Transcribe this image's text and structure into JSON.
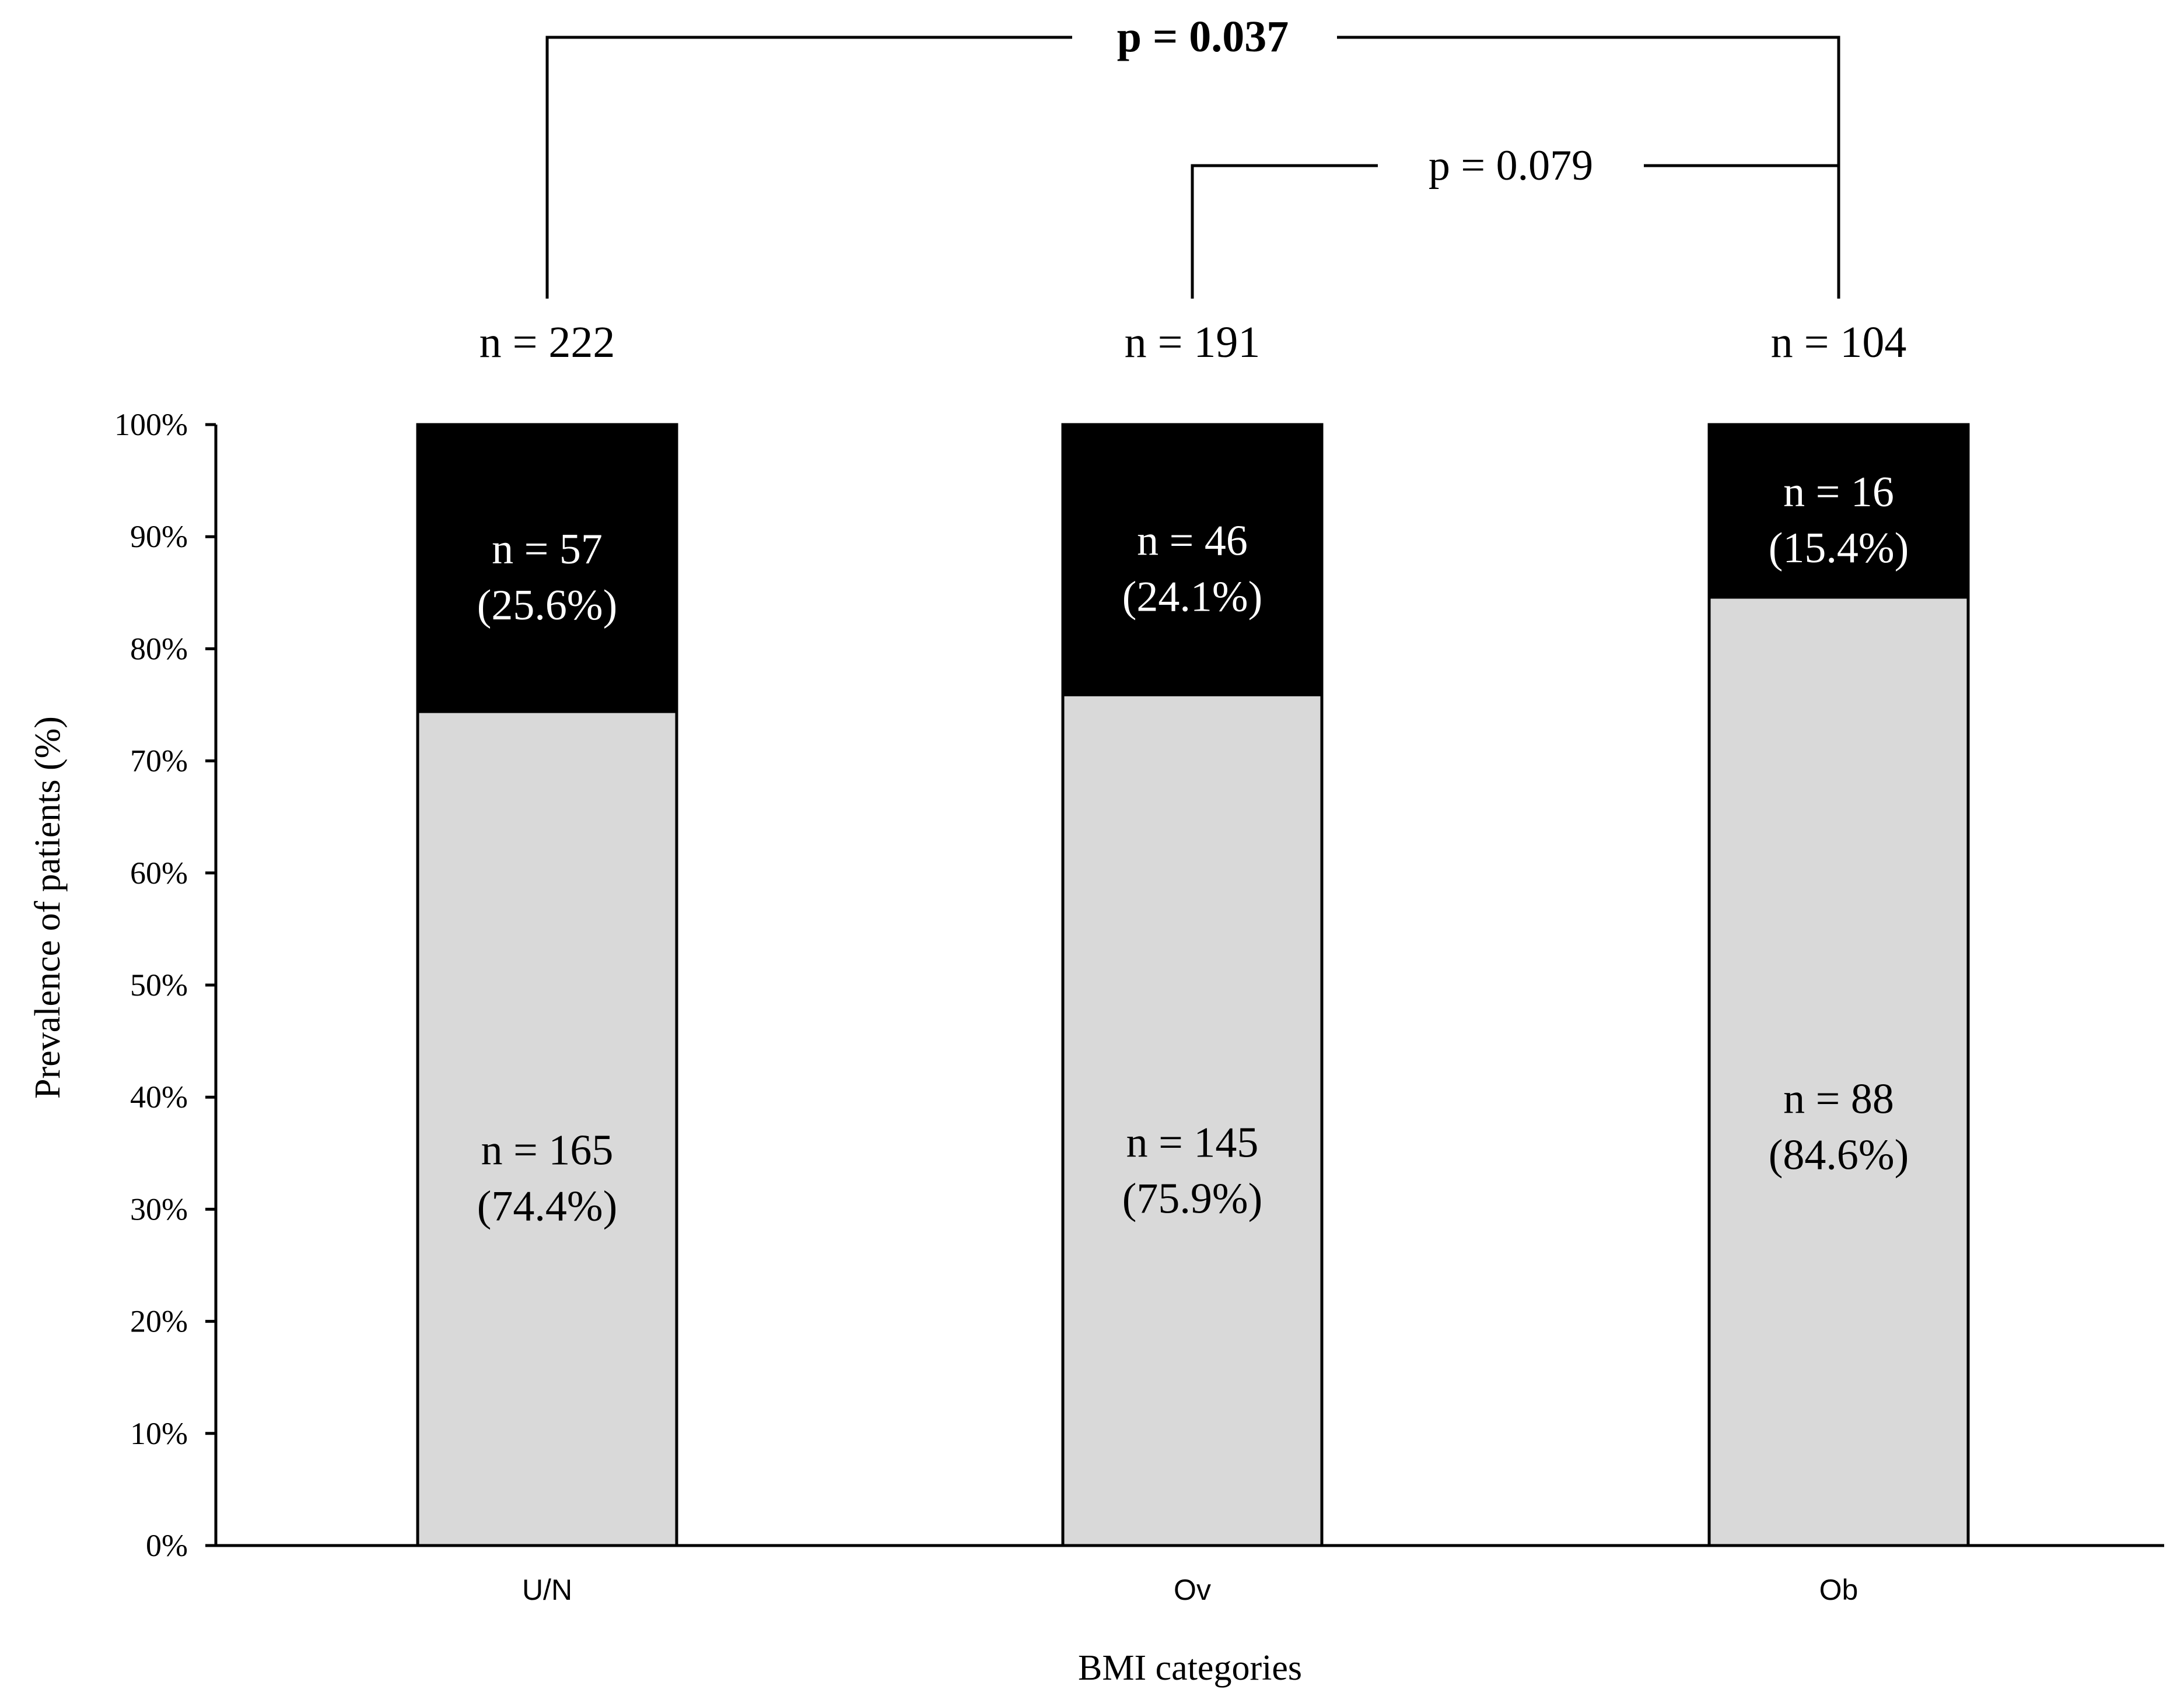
{
  "chart_data": {
    "type": "bar",
    "stacked": true,
    "title": "",
    "xlabel": "BMI categories",
    "ylabel": "Prevalence of patients (%)",
    "ylim": [
      0,
      100
    ],
    "y_ticks": [
      "0%",
      "10%",
      "20%",
      "30%",
      "40%",
      "50%",
      "60%",
      "70%",
      "80%",
      "90%",
      "100%"
    ],
    "categories": [
      "U/N",
      "Ov",
      "Ob"
    ],
    "totals": [
      "n = 222",
      "n = 191",
      "n = 104"
    ],
    "series": [
      {
        "values": [
          74.4,
          75.9,
          84.6
        ],
        "counts": [
          "n = 165",
          "n = 145",
          "n = 88"
        ],
        "percent_labels": [
          "(74.4%)",
          "(75.9%)",
          "(84.6%)"
        ],
        "color": "#d9d9d9",
        "label_color": "#000000"
      },
      {
        "values": [
          25.6,
          24.1,
          15.4
        ],
        "counts": [
          "n = 57",
          "n = 46",
          "n = 16"
        ],
        "percent_labels": [
          "(25.6%)",
          "(24.1%)",
          "(15.4%)"
        ],
        "color": "#000000",
        "label_color": "#ffffff"
      }
    ],
    "comparisons": [
      {
        "from": "U/N",
        "to": "Ob",
        "label": "p = 0.037",
        "bold": true
      },
      {
        "from": "Ov",
        "to": "Ob",
        "label": "p = 0.079",
        "bold": false
      }
    ],
    "grid": false,
    "legend": "none"
  }
}
